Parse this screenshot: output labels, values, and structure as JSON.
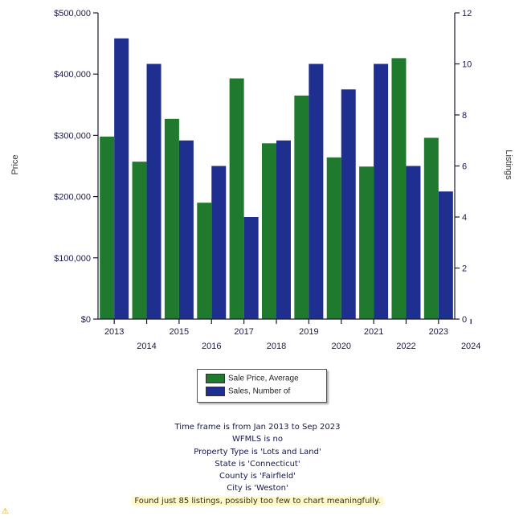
{
  "chart_data": {
    "type": "bar",
    "years": [
      "2013",
      "2014",
      "2015",
      "2016",
      "2017",
      "2018",
      "2019",
      "2020",
      "2021",
      "2022",
      "2023"
    ],
    "x_tick_labels_top": [
      "2013",
      "2015",
      "2017",
      "2019",
      "2021",
      "2023"
    ],
    "x_tick_labels_bottom": [
      "2014",
      "2016",
      "2018",
      "2020",
      "2022",
      "2024"
    ],
    "series": [
      {
        "name": "Sale Price, Average",
        "axis": "left",
        "color": "#1f7a2e",
        "values": [
          298000,
          257000,
          327000,
          190000,
          393000,
          287000,
          365000,
          264000,
          249000,
          426000,
          296000
        ]
      },
      {
        "name": "Sales, Number of",
        "axis": "right",
        "color": "#1f2f8f",
        "values": [
          11,
          10,
          7,
          6,
          4,
          7,
          10,
          9,
          10,
          6,
          5
        ]
      }
    ],
    "ylabel_left": "Price",
    "ylabel_right": "Listings",
    "ylim_left": [
      0,
      500000
    ],
    "ylim_right": [
      0,
      12
    ],
    "left_tick_labels": [
      "$0",
      "$100,000",
      "$200,000",
      "$300,000",
      "$400,000",
      "$500,000"
    ],
    "right_tick_labels": [
      "0",
      "2",
      "4",
      "6",
      "8",
      "10",
      "12"
    ],
    "legend_position": "bottom"
  },
  "notes": [
    "Time frame is from Jan 2013 to Sep 2023",
    "WFMLS is no",
    "Property Type is 'Lots and Land'",
    "State is 'Connecticut'",
    "County is 'Fairfield'",
    "City is 'Weston'"
  ],
  "warning": "Found just 85 listings, possibly too few to chart meaningfully.",
  "warning_icon": "warning-icon"
}
